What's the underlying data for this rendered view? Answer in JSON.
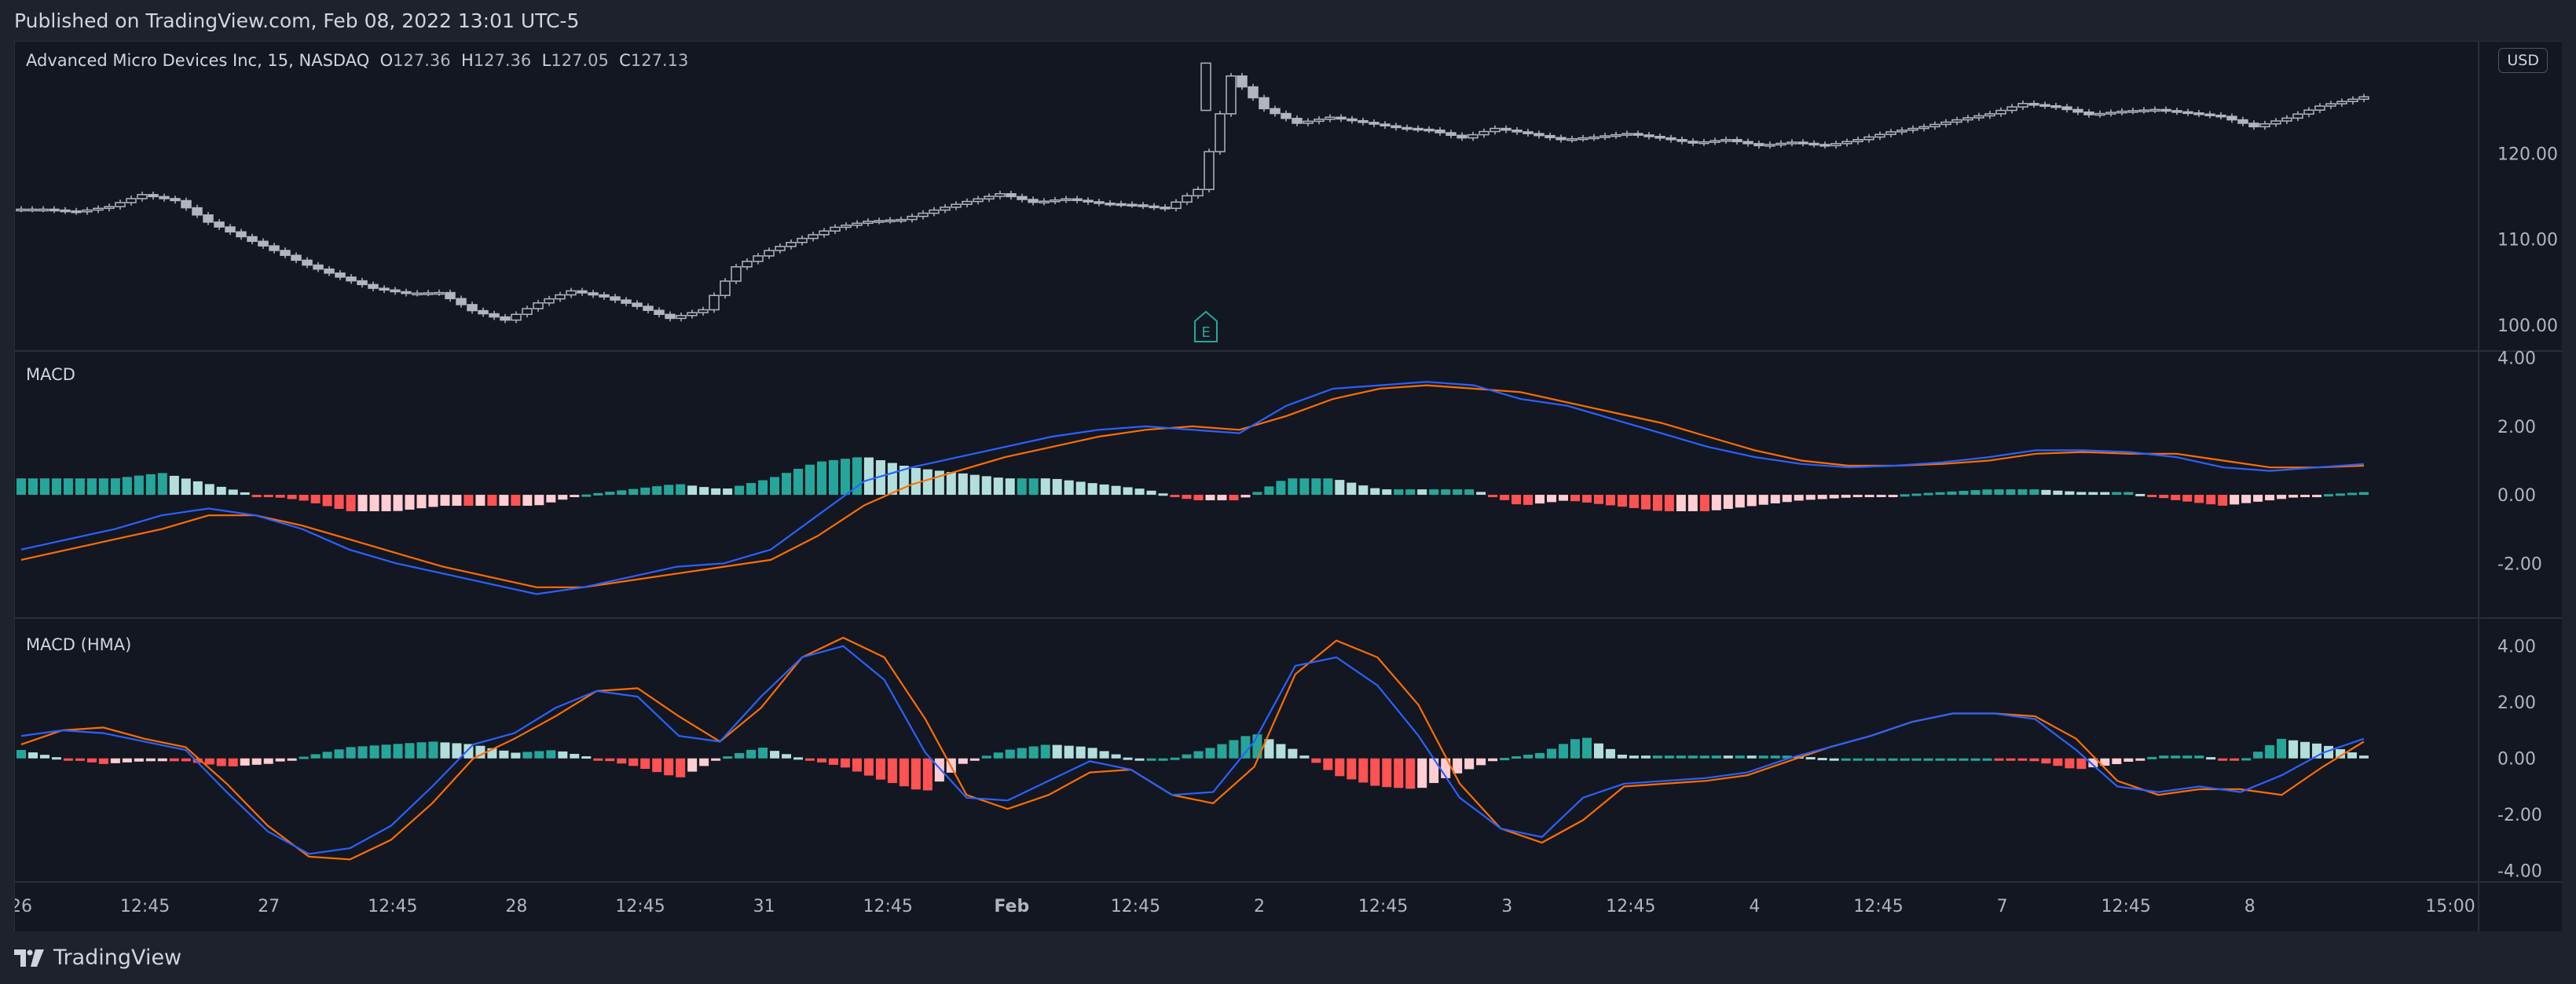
{
  "header": {
    "published": "Published on TradingView.com, Feb 08, 2022 13:01 UTC-5"
  },
  "footer": {
    "brand": "TradingView"
  },
  "symbol": {
    "name": "Advanced Micro Devices Inc, 15, NASDAQ",
    "open_label": "O",
    "open": "127.36",
    "high_label": "H",
    "high": "127.36",
    "low_label": "L",
    "low": "127.05",
    "close_label": "C",
    "close": "127.13"
  },
  "currency": "USD",
  "earnings_marker": "E",
  "panes": {
    "price_label": "",
    "macd_label": "MACD",
    "macd_hma_label": "MACD (HMA)"
  },
  "colors": {
    "background": "#131722",
    "grid": "#2a2e39",
    "candle": "#b2b5be",
    "macd_line": "#2962ff",
    "signal_line": "#ff6d00",
    "hist_pos_strong": "#26a69a",
    "hist_pos_weak": "#b2dfdb",
    "hist_neg_strong": "#ff5252",
    "hist_neg_weak": "#ffcdd2",
    "earnings": "#26a69a"
  },
  "chart_data": [
    {
      "type": "candlestick",
      "title": "Advanced Micro Devices Inc, 15, NASDAQ",
      "y_ticks": [
        "100.00",
        "110.00",
        "120.00"
      ],
      "ylim": [
        97,
        133
      ],
      "x": [
        "26",
        "27",
        "28",
        "31",
        "Feb",
        "2",
        "3",
        "4",
        "7",
        "8"
      ],
      "close_path": [
        113.5,
        113.2,
        113.8,
        115.2,
        114.5,
        112,
        110.3,
        108.7,
        107.0,
        105.6,
        104.3,
        103.7,
        103.8,
        101.7,
        100.6,
        102.6,
        104.0,
        103.3,
        102.2,
        100.8,
        101.8,
        106.8,
        108.7,
        110.1,
        111.4,
        112.1,
        112.3,
        113.4,
        114.4,
        115.3,
        114.3,
        114.7,
        114.2,
        114.0,
        113.6,
        115.8,
        129.0,
        125.2,
        123.5,
        124.2,
        123.6,
        123.0,
        122.7,
        121.8,
        122.9,
        122.3,
        121.6,
        121.9,
        122.3,
        121.8,
        121.2,
        121.6,
        120.9,
        121.3,
        120.9,
        121.6,
        122.5,
        123.1,
        123.9,
        124.6,
        125.8,
        125.4,
        124.5,
        124.9,
        125.1,
        124.7,
        124.3,
        123.1,
        124.1,
        125.5,
        126.3,
        127.13
      ]
    },
    {
      "type": "line",
      "title": "MACD",
      "y_ticks": [
        "4.00",
        "2.00",
        "0.00",
        "-2.00"
      ],
      "ylim": [
        -3.6,
        4.2
      ],
      "series": [
        {
          "role": "macd",
          "values": [
            -1.6,
            -1.3,
            -1.0,
            -0.6,
            -0.4,
            -0.6,
            -1.0,
            -1.6,
            -2.0,
            -2.3,
            -2.6,
            -2.9,
            -2.7,
            -2.4,
            -2.1,
            -2.0,
            -1.6,
            -0.6,
            0.4,
            0.8,
            1.1,
            1.4,
            1.7,
            1.9,
            2.0,
            1.9,
            1.8,
            2.6,
            3.1,
            3.2,
            3.3,
            3.2,
            2.8,
            2.6,
            2.2,
            1.8,
            1.4,
            1.1,
            0.9,
            0.8,
            0.85,
            0.95,
            1.1,
            1.3,
            1.3,
            1.25,
            1.1,
            0.8,
            0.7,
            0.8,
            0.9
          ]
        },
        {
          "role": "signal",
          "values": [
            -1.9,
            -1.6,
            -1.3,
            -1.0,
            -0.6,
            -0.6,
            -0.9,
            -1.3,
            -1.7,
            -2.1,
            -2.4,
            -2.7,
            -2.7,
            -2.5,
            -2.3,
            -2.1,
            -1.9,
            -1.2,
            -0.3,
            0.3,
            0.7,
            1.1,
            1.4,
            1.7,
            1.9,
            2.0,
            1.9,
            2.3,
            2.8,
            3.1,
            3.2,
            3.1,
            3.0,
            2.7,
            2.4,
            2.1,
            1.7,
            1.3,
            1.0,
            0.85,
            0.85,
            0.9,
            1.0,
            1.2,
            1.25,
            1.2,
            1.2,
            1.0,
            0.8,
            0.8,
            0.85
          ]
        }
      ]
    },
    {
      "type": "line",
      "title": "MACD (HMA)",
      "y_ticks": [
        "4.00",
        "2.00",
        "0.00",
        "-2.00",
        "-4.00"
      ],
      "ylim": [
        -4.4,
        5.0
      ],
      "series": [
        {
          "role": "macd",
          "values": [
            0.8,
            1.0,
            0.9,
            0.6,
            0.3,
            -1.2,
            -2.6,
            -3.4,
            -3.2,
            -2.4,
            -1.0,
            0.5,
            0.9,
            1.8,
            2.4,
            2.2,
            0.8,
            0.6,
            2.2,
            3.6,
            4.0,
            2.8,
            0.2,
            -1.4,
            -1.5,
            -0.8,
            -0.1,
            -0.4,
            -1.3,
            -1.2,
            0.6,
            3.3,
            3.6,
            2.6,
            0.8,
            -1.4,
            -2.5,
            -2.8,
            -1.4,
            -0.9,
            -0.8,
            -0.7,
            -0.5,
            0.0,
            0.4,
            0.8,
            1.3,
            1.6,
            1.6,
            1.4,
            0.3,
            -1.0,
            -1.2,
            -1.0,
            -1.2,
            -0.6,
            0.2,
            0.7
          ]
        },
        {
          "role": "signal",
          "values": [
            0.5,
            1.0,
            1.1,
            0.7,
            0.4,
            -0.9,
            -2.4,
            -3.5,
            -3.6,
            -2.9,
            -1.6,
            0.0,
            0.7,
            1.5,
            2.4,
            2.5,
            1.5,
            0.6,
            1.8,
            3.6,
            4.3,
            3.6,
            1.4,
            -1.3,
            -1.8,
            -1.3,
            -0.5,
            -0.4,
            -1.3,
            -1.6,
            -0.3,
            3.0,
            4.2,
            3.6,
            1.9,
            -0.9,
            -2.5,
            -3.0,
            -2.2,
            -1.0,
            -0.9,
            -0.8,
            -0.6,
            -0.1,
            0.4,
            0.8,
            1.3,
            1.6,
            1.6,
            1.5,
            0.7,
            -0.8,
            -1.3,
            -1.1,
            -1.1,
            -1.3,
            -0.3,
            0.6
          ]
        }
      ]
    }
  ],
  "time_axis": {
    "labels": [
      "26",
      "12:45",
      "27",
      "12:45",
      "28",
      "12:45",
      "31",
      "12:45",
      "Feb",
      "12:45",
      "2",
      "12:45",
      "3",
      "12:45",
      "4",
      "12:45",
      "7",
      "12:45",
      "8",
      "15:00"
    ],
    "bold": [
      "Feb"
    ]
  }
}
